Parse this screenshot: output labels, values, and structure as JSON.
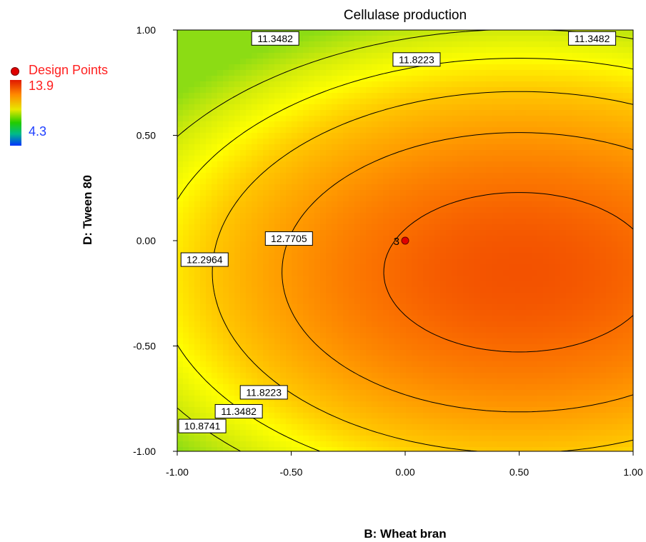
{
  "chart_data": {
    "type": "contour",
    "title": "Cellulase production",
    "xlabel": "B: Wheat bran",
    "ylabel": "D: Tween 80",
    "xlim": [
      -1.0,
      1.0
    ],
    "ylim": [
      -1.0,
      1.0
    ],
    "x_ticks": [
      "-1.00",
      "-0.50",
      "0.00",
      "0.50",
      "1.00"
    ],
    "y_ticks": [
      "1.00",
      "0.50",
      "0.00",
      "-0.50",
      "-1.00"
    ],
    "contour_levels": [
      "10.8741",
      "11.3482",
      "11.8223",
      "12.2964",
      "12.7705"
    ],
    "color_scale": {
      "max": "13.9",
      "min": "4.3",
      "max_color": "#e01800",
      "min_color": "#0033ff"
    },
    "design_points": [
      {
        "x": 0.0,
        "y": 0.0,
        "label": "3"
      }
    ],
    "legend": {
      "label": "Design Points",
      "placement": "left"
    }
  }
}
